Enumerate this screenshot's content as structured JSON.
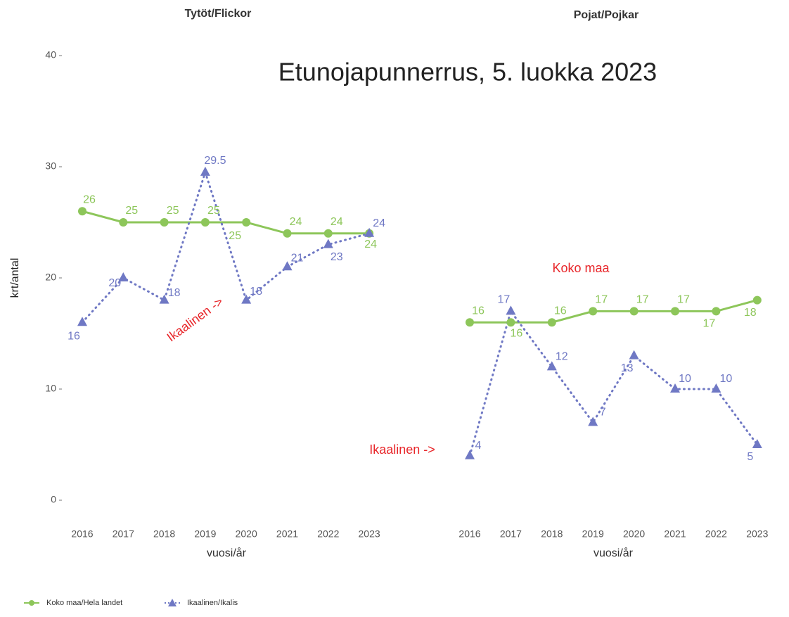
{
  "title": "Etunojapunnerrus, 5. luokka 2023",
  "annotations": [
    "Ikaalinen ->",
    "Ikaalinen ->",
    "Koko maa"
  ],
  "chart_data": [
    {
      "type": "line",
      "title": "Tytöt/Flickor",
      "xlabel": "vuosi/år",
      "ylabel": "krt/antal",
      "categories": [
        "2016",
        "2017",
        "2018",
        "2019",
        "2020",
        "2021",
        "2022",
        "2023"
      ],
      "ylim": [
        0,
        40
      ],
      "yticks": [
        0,
        10,
        20,
        30,
        40
      ],
      "series": [
        {
          "name": "Koko maa/Hela landet",
          "color": "#8dc65a",
          "values": [
            26,
            25,
            25,
            25,
            25,
            24,
            24,
            24
          ]
        },
        {
          "name": "Ikaalinen/Ikalis",
          "color": "#6f78c4",
          "values": [
            16,
            20,
            18,
            29.5,
            18,
            21,
            23,
            24
          ]
        }
      ]
    },
    {
      "type": "line",
      "title": "Pojat/Pojkar",
      "xlabel": "vuosi/år",
      "categories": [
        "2016",
        "2017",
        "2018",
        "2019",
        "2020",
        "2021",
        "2022",
        "2023"
      ],
      "ylim": [
        0,
        40
      ],
      "series": [
        {
          "name": "Koko maa/Hela landet",
          "color": "#8dc65a",
          "values": [
            16,
            16,
            16,
            17,
            17,
            17,
            17,
            18
          ]
        },
        {
          "name": "Ikaalinen/Ikalis",
          "color": "#6f78c4",
          "values": [
            4,
            17,
            12,
            7,
            13,
            10,
            10,
            5
          ]
        }
      ]
    }
  ]
}
